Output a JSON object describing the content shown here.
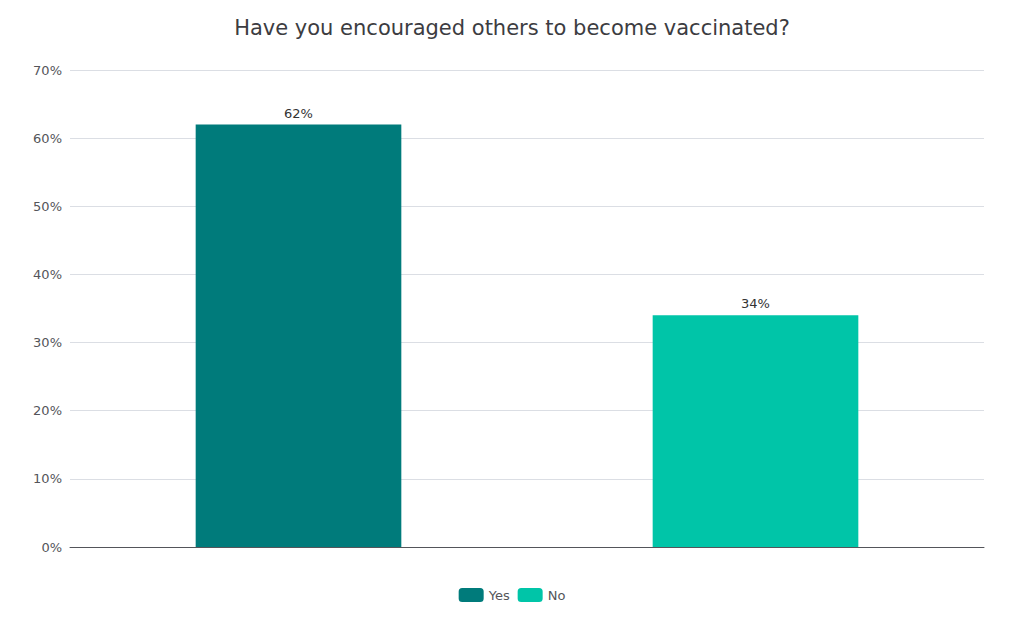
{
  "chart_data": {
    "type": "bar",
    "title": "Have you encouraged others to become vaccinated?",
    "categories": [
      "Yes",
      "No"
    ],
    "values": [
      0.62,
      0.34
    ],
    "value_labels": [
      "62%",
      "34%"
    ],
    "colors": [
      "#007b7b",
      "#00c5a8"
    ],
    "ylim": [
      0,
      0.7
    ],
    "yticks": [
      {
        "value": 0.0,
        "label": "0%"
      },
      {
        "value": 0.1,
        "label": "10%"
      },
      {
        "value": 0.2,
        "label": "20%"
      },
      {
        "value": 0.3,
        "label": "30%"
      },
      {
        "value": 0.4,
        "label": "40%"
      },
      {
        "value": 0.5,
        "label": "50%"
      },
      {
        "value": 0.6,
        "label": "60%"
      },
      {
        "value": 0.7,
        "label": "70%"
      }
    ],
    "grid": true,
    "data_labels": true,
    "tick_labels": "y",
    "legend": "bottom"
  }
}
